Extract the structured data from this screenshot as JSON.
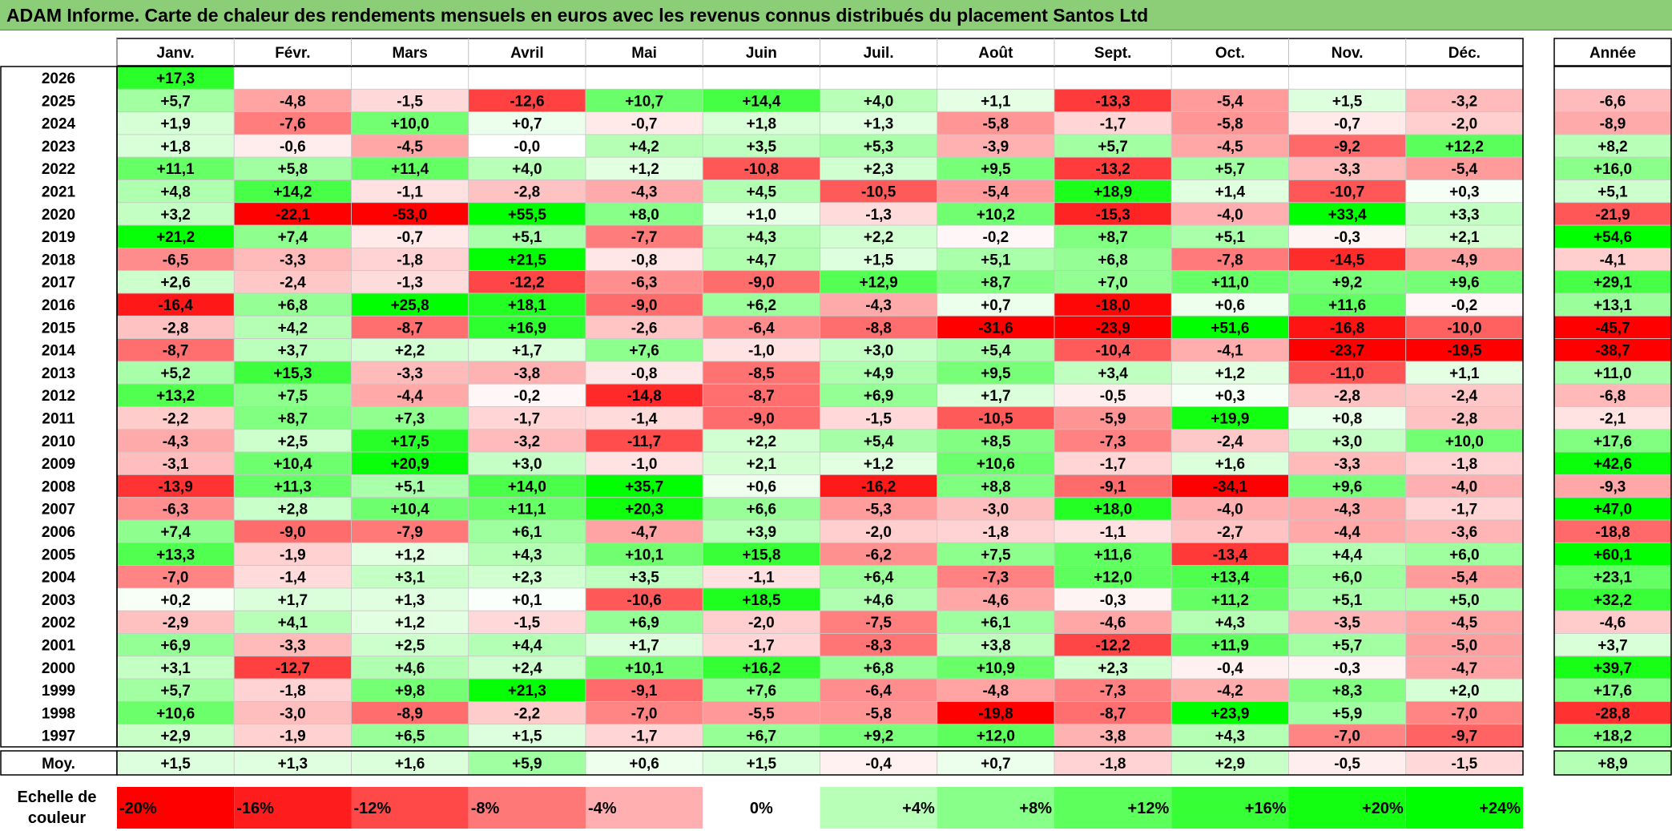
{
  "title": "ADAM Informe. Carte de chaleur des rendements mensuels en euros avec les revenus connus distribués du placement Santos Ltd",
  "chart_data": {
    "type": "heatmap",
    "months": [
      "Janv.",
      "Févr.",
      "Mars",
      "Avril",
      "Mai",
      "Juin",
      "Juil.",
      "Août",
      "Sept.",
      "Oct.",
      "Nov.",
      "Déc."
    ],
    "annual_header": "Année",
    "rows": [
      {
        "year": "2026",
        "months": [
          "+17,3",
          "",
          "",
          "",
          "",
          "",
          "",
          "",
          "",
          "",
          "",
          ""
        ],
        "annual": ""
      },
      {
        "year": "2025",
        "months": [
          "+5,7",
          "-4,8",
          "-1,5",
          "-12,6",
          "+10,7",
          "+14,4",
          "+4,0",
          "+1,1",
          "-13,3",
          "-5,4",
          "+1,5",
          "-3,2"
        ],
        "annual": "-6,6"
      },
      {
        "year": "2024",
        "months": [
          "+1,9",
          "-7,6",
          "+10,0",
          "+0,7",
          "-0,7",
          "+1,8",
          "+1,3",
          "-5,8",
          "-1,7",
          "-5,8",
          "-0,7",
          "-2,0"
        ],
        "annual": "-8,9"
      },
      {
        "year": "2023",
        "months": [
          "+1,8",
          "-0,6",
          "-4,5",
          "-0,0",
          "+4,2",
          "+3,5",
          "+5,3",
          "-3,9",
          "+5,7",
          "-4,5",
          "-9,2",
          "+12,2"
        ],
        "annual": "+8,2"
      },
      {
        "year": "2022",
        "months": [
          "+11,1",
          "+5,8",
          "+11,4",
          "+4,0",
          "+1,2",
          "-10,8",
          "+2,3",
          "+9,5",
          "-13,2",
          "+5,7",
          "-3,3",
          "-5,4"
        ],
        "annual": "+16,0"
      },
      {
        "year": "2021",
        "months": [
          "+4,8",
          "+14,2",
          "-1,1",
          "-2,8",
          "-4,3",
          "+4,5",
          "-10,5",
          "-5,4",
          "+18,9",
          "+1,4",
          "-10,7",
          "+0,3"
        ],
        "annual": "+5,1"
      },
      {
        "year": "2020",
        "months": [
          "+3,2",
          "-22,1",
          "-53,0",
          "+55,5",
          "+8,0",
          "+1,0",
          "-1,3",
          "+10,2",
          "-15,3",
          "-4,0",
          "+33,4",
          "+3,3"
        ],
        "annual": "-21,9"
      },
      {
        "year": "2019",
        "months": [
          "+21,2",
          "+7,4",
          "-0,7",
          "+5,1",
          "-7,7",
          "+4,3",
          "+2,2",
          "-0,2",
          "+8,7",
          "+5,1",
          "-0,3",
          "+2,1"
        ],
        "annual": "+54,6"
      },
      {
        "year": "2018",
        "months": [
          "-6,5",
          "-3,3",
          "-1,8",
          "+21,5",
          "-0,8",
          "+4,7",
          "+1,5",
          "+5,1",
          "+6,8",
          "-7,8",
          "-14,5",
          "-4,9"
        ],
        "annual": "-4,1"
      },
      {
        "year": "2017",
        "months": [
          "+2,6",
          "-2,4",
          "-1,3",
          "-12,2",
          "-6,3",
          "-9,0",
          "+12,9",
          "+8,7",
          "+7,0",
          "+11,0",
          "+9,2",
          "+9,6"
        ],
        "annual": "+29,1"
      },
      {
        "year": "2016",
        "months": [
          "-16,4",
          "+6,8",
          "+25,8",
          "+18,1",
          "-9,0",
          "+6,2",
          "-4,3",
          "+0,7",
          "-18,0",
          "+0,6",
          "+11,6",
          "-0,2"
        ],
        "annual": "+13,1"
      },
      {
        "year": "2015",
        "months": [
          "-2,8",
          "+4,2",
          "-8,7",
          "+16,9",
          "-2,6",
          "-6,4",
          "-8,8",
          "-31,6",
          "-23,9",
          "+51,6",
          "-16,8",
          "-10,0"
        ],
        "annual": "-45,7"
      },
      {
        "year": "2014",
        "months": [
          "-8,7",
          "+3,7",
          "+2,2",
          "+1,7",
          "+7,6",
          "-1,0",
          "+3,0",
          "+5,4",
          "-10,4",
          "-4,1",
          "-23,7",
          "-19,5"
        ],
        "annual": "-38,7"
      },
      {
        "year": "2013",
        "months": [
          "+5,2",
          "+15,3",
          "-3,3",
          "-3,8",
          "-0,8",
          "-8,5",
          "+4,9",
          "+9,5",
          "+3,4",
          "+1,2",
          "-11,0",
          "+1,1"
        ],
        "annual": "+11,0"
      },
      {
        "year": "2012",
        "months": [
          "+13,2",
          "+7,5",
          "-4,4",
          "-0,2",
          "-14,8",
          "-8,7",
          "+6,9",
          "+1,7",
          "-0,5",
          "+0,3",
          "-2,8",
          "-2,4"
        ],
        "annual": "-6,8"
      },
      {
        "year": "2011",
        "months": [
          "-2,2",
          "+8,7",
          "+7,3",
          "-1,7",
          "-1,4",
          "-9,0",
          "-1,5",
          "-10,5",
          "-5,9",
          "+19,9",
          "+0,8",
          "-2,8"
        ],
        "annual": "-2,1"
      },
      {
        "year": "2010",
        "months": [
          "-4,3",
          "+2,5",
          "+17,5",
          "-3,2",
          "-11,7",
          "+2,2",
          "+5,4",
          "+8,5",
          "-7,3",
          "-2,4",
          "+3,0",
          "+10,0"
        ],
        "annual": "+17,6"
      },
      {
        "year": "2009",
        "months": [
          "-3,1",
          "+10,4",
          "+20,9",
          "+3,0",
          "-1,0",
          "+2,1",
          "+1,2",
          "+10,6",
          "-1,7",
          "+1,6",
          "-3,3",
          "-1,8"
        ],
        "annual": "+42,6"
      },
      {
        "year": "2008",
        "months": [
          "-13,9",
          "+11,3",
          "+5,1",
          "+14,0",
          "+35,7",
          "+0,6",
          "-16,2",
          "+8,8",
          "-9,1",
          "-34,1",
          "+9,6",
          "-4,0"
        ],
        "annual": "-9,3"
      },
      {
        "year": "2007",
        "months": [
          "-6,3",
          "+2,8",
          "+10,4",
          "+11,1",
          "+20,3",
          "+6,6",
          "-5,3",
          "-3,0",
          "+18,0",
          "-4,0",
          "-4,3",
          "-1,7"
        ],
        "annual": "+47,0"
      },
      {
        "year": "2006",
        "months": [
          "+7,4",
          "-9,0",
          "-7,9",
          "+6,1",
          "-4,7",
          "+3,9",
          "-2,0",
          "-1,8",
          "-1,1",
          "-2,7",
          "-4,4",
          "-3,6"
        ],
        "annual": "-18,8"
      },
      {
        "year": "2005",
        "months": [
          "+13,3",
          "-1,9",
          "+1,2",
          "+4,3",
          "+10,1",
          "+15,8",
          "-6,2",
          "+7,5",
          "+11,6",
          "-13,4",
          "+4,4",
          "+6,0"
        ],
        "annual": "+60,1"
      },
      {
        "year": "2004",
        "months": [
          "-7,0",
          "-1,4",
          "+3,1",
          "+2,3",
          "+3,5",
          "-1,1",
          "+6,4",
          "-7,3",
          "+12,0",
          "+13,4",
          "+6,0",
          "-5,4"
        ],
        "annual": "+23,1"
      },
      {
        "year": "2003",
        "months": [
          "+0,2",
          "+1,7",
          "+1,3",
          "+0,1",
          "-10,6",
          "+18,5",
          "+4,6",
          "-4,6",
          "-0,3",
          "+11,2",
          "+5,1",
          "+5,0"
        ],
        "annual": "+32,2"
      },
      {
        "year": "2002",
        "months": [
          "-2,9",
          "+4,1",
          "+1,2",
          "-1,5",
          "+6,9",
          "-2,0",
          "-7,5",
          "+6,1",
          "-4,6",
          "+4,3",
          "-3,5",
          "-4,5"
        ],
        "annual": "-4,6"
      },
      {
        "year": "2001",
        "months": [
          "+6,9",
          "-3,3",
          "+2,5",
          "+4,4",
          "+1,7",
          "-1,7",
          "-8,3",
          "+3,8",
          "-12,2",
          "+11,9",
          "+5,7",
          "-5,0"
        ],
        "annual": "+3,7"
      },
      {
        "year": "2000",
        "months": [
          "+3,1",
          "-12,7",
          "+4,6",
          "+2,4",
          "+10,1",
          "+16,2",
          "+6,8",
          "+10,9",
          "+2,3",
          "-0,4",
          "-0,3",
          "-4,7"
        ],
        "annual": "+39,7"
      },
      {
        "year": "1999",
        "months": [
          "+5,7",
          "-1,8",
          "+9,8",
          "+21,3",
          "-9,1",
          "+7,6",
          "-6,4",
          "-4,8",
          "-7,3",
          "-4,2",
          "+8,3",
          "+2,0"
        ],
        "annual": "+17,6"
      },
      {
        "year": "1998",
        "months": [
          "+10,6",
          "-3,0",
          "-8,9",
          "-2,2",
          "-7,0",
          "-5,5",
          "-5,8",
          "-19,8",
          "-8,7",
          "+23,9",
          "+5,9",
          "-7,0"
        ],
        "annual": "-28,8"
      },
      {
        "year": "1997",
        "months": [
          "+2,9",
          "-1,9",
          "+6,5",
          "+1,5",
          "-1,7",
          "+6,7",
          "+9,2",
          "+12,0",
          "-3,8",
          "+4,3",
          "-7,0",
          "-9,7"
        ],
        "annual": "+18,2"
      }
    ],
    "average_row": {
      "label": "Moy.",
      "months": [
        "+1,5",
        "+1,3",
        "+1,6",
        "+5,9",
        "+0,6",
        "+1,5",
        "-0,4",
        "+0,7",
        "-1,8",
        "+2,9",
        "-0,5",
        "-1,5"
      ],
      "annual": "+8,9"
    },
    "color_scale": {
      "label": "Echelle de couleur",
      "steps": [
        "-20%",
        "-16%",
        "-12%",
        "-8%",
        "-4%",
        "0%",
        "+4%",
        "+8%",
        "+12%",
        "+16%",
        "+20%",
        "+24%"
      ]
    },
    "colors": {
      "negative": "#ff0000",
      "neutral": "#ffffff",
      "positive": "#00ff00",
      "title_bar": "#8ccd78"
    }
  }
}
